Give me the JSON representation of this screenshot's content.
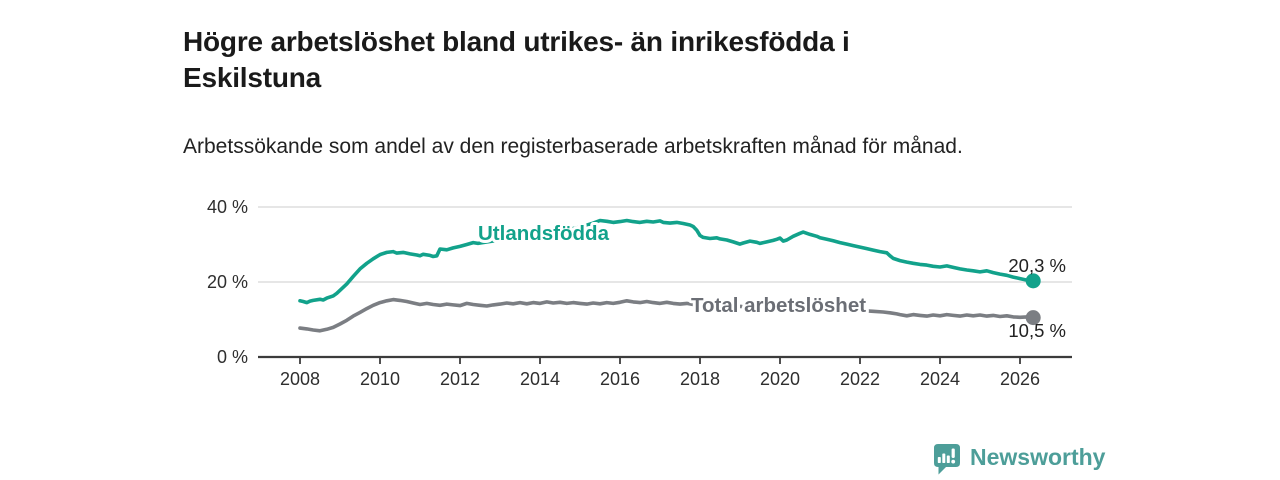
{
  "header": {
    "title": "Högre arbetslöshet bland utrikes- än inrikesfödda i Eskilstuna",
    "subtitle": "Arbetssökande som andel av den registerbaserade arbetskraften månad för månad."
  },
  "footer": {
    "brand": "Newsworthy",
    "logo_icon": "newsworthy-speech-bubble-bar-chart-icon",
    "brand_color": "#4d9e99"
  },
  "colors": {
    "series_foreign_born": "#12a28b",
    "series_total": "#7b7e83",
    "series_total_label": "#6b6e75",
    "gridline": "#d8d8d8",
    "axis": "#3c3c3c",
    "axis_text": "#2e2e2e",
    "value_label": "#222222"
  },
  "chart_data": {
    "type": "line",
    "title": "Högre arbetslöshet bland utrikes- än inrikesfödda i Eskilstuna",
    "subtitle": "Arbetssökande som andel av den registerbaserade arbetskraften månad för månad.",
    "xlabel": "",
    "ylabel": "",
    "y_unit": "%",
    "x_range": [
      2007.0,
      2027.2
    ],
    "ylim": [
      0,
      42
    ],
    "grid": "horizontal",
    "legend_position": "inline-labels",
    "x_ticks": [
      2008,
      2010,
      2012,
      2014,
      2016,
      2018,
      2020,
      2022,
      2024,
      2026
    ],
    "x_tick_labels": [
      "2008",
      "2010",
      "2012",
      "2014",
      "2016",
      "2018",
      "2020",
      "2022",
      "2024",
      "2026"
    ],
    "y_ticks": [
      0,
      20,
      40
    ],
    "y_tick_labels": [
      "0 %",
      "20 %",
      "40 %"
    ],
    "series": [
      {
        "name": "Utlandsfödda",
        "color": "#12a28b",
        "end_value": 20.3,
        "end_label": "20,3 %",
        "points": [
          [
            2008.0,
            15.0
          ],
          [
            2008.08,
            14.8
          ],
          [
            2008.17,
            14.5
          ],
          [
            2008.25,
            14.9
          ],
          [
            2008.33,
            15.1
          ],
          [
            2008.5,
            15.4
          ],
          [
            2008.58,
            15.2
          ],
          [
            2008.67,
            15.7
          ],
          [
            2008.83,
            16.3
          ],
          [
            2008.92,
            17.0
          ],
          [
            2009.0,
            17.8
          ],
          [
            2009.17,
            19.5
          ],
          [
            2009.33,
            21.5
          ],
          [
            2009.5,
            23.5
          ],
          [
            2009.67,
            25.0
          ],
          [
            2009.83,
            26.2
          ],
          [
            2010.0,
            27.3
          ],
          [
            2010.17,
            27.9
          ],
          [
            2010.33,
            28.1
          ],
          [
            2010.42,
            27.7
          ],
          [
            2010.58,
            27.9
          ],
          [
            2010.75,
            27.5
          ],
          [
            2010.92,
            27.2
          ],
          [
            2011.0,
            27.0
          ],
          [
            2011.08,
            27.4
          ],
          [
            2011.25,
            27.1
          ],
          [
            2011.33,
            26.8
          ],
          [
            2011.42,
            27.0
          ],
          [
            2011.5,
            28.8
          ],
          [
            2011.67,
            28.6
          ],
          [
            2011.83,
            29.1
          ],
          [
            2012.0,
            29.5
          ],
          [
            2012.17,
            30.0
          ],
          [
            2012.33,
            30.5
          ],
          [
            2012.45,
            30.3
          ],
          [
            2012.75,
            30.8
          ],
          [
            2013.0,
            31.2
          ],
          [
            2013.5,
            32.0
          ],
          [
            2014.0,
            32.8
          ],
          [
            2014.5,
            33.6
          ],
          [
            2015.0,
            34.6
          ],
          [
            2015.3,
            35.6
          ],
          [
            2015.5,
            36.4
          ],
          [
            2015.67,
            36.2
          ],
          [
            2015.83,
            35.9
          ],
          [
            2016.0,
            36.1
          ],
          [
            2016.17,
            36.4
          ],
          [
            2016.33,
            36.1
          ],
          [
            2016.5,
            35.9
          ],
          [
            2016.67,
            36.2
          ],
          [
            2016.83,
            36.0
          ],
          [
            2017.0,
            36.3
          ],
          [
            2017.08,
            35.9
          ],
          [
            2017.25,
            35.7
          ],
          [
            2017.42,
            35.9
          ],
          [
            2017.58,
            35.6
          ],
          [
            2017.75,
            35.2
          ],
          [
            2017.83,
            34.8
          ],
          [
            2017.92,
            33.8
          ],
          [
            2018.0,
            32.4
          ],
          [
            2018.08,
            31.9
          ],
          [
            2018.25,
            31.6
          ],
          [
            2018.42,
            31.8
          ],
          [
            2018.5,
            31.5
          ],
          [
            2018.67,
            31.2
          ],
          [
            2018.83,
            30.7
          ],
          [
            2019.0,
            30.1
          ],
          [
            2019.08,
            30.4
          ],
          [
            2019.25,
            30.9
          ],
          [
            2019.42,
            30.6
          ],
          [
            2019.5,
            30.3
          ],
          [
            2019.67,
            30.7
          ],
          [
            2019.83,
            31.1
          ],
          [
            2019.92,
            31.4
          ],
          [
            2020.0,
            31.7
          ],
          [
            2020.08,
            30.9
          ],
          [
            2020.17,
            31.2
          ],
          [
            2020.33,
            32.2
          ],
          [
            2020.5,
            33.0
          ],
          [
            2020.58,
            33.3
          ],
          [
            2020.75,
            32.7
          ],
          [
            2020.92,
            32.2
          ],
          [
            2021.0,
            31.8
          ],
          [
            2021.17,
            31.4
          ],
          [
            2021.33,
            31.0
          ],
          [
            2021.5,
            30.5
          ],
          [
            2021.67,
            30.1
          ],
          [
            2021.83,
            29.7
          ],
          [
            2022.0,
            29.3
          ],
          [
            2022.17,
            28.9
          ],
          [
            2022.33,
            28.5
          ],
          [
            2022.5,
            28.1
          ],
          [
            2022.67,
            27.8
          ],
          [
            2022.75,
            27.0
          ],
          [
            2022.83,
            26.3
          ],
          [
            2023.0,
            25.7
          ],
          [
            2023.17,
            25.3
          ],
          [
            2023.33,
            25.0
          ],
          [
            2023.5,
            24.7
          ],
          [
            2023.67,
            24.5
          ],
          [
            2023.83,
            24.2
          ],
          [
            2024.0,
            24.0
          ],
          [
            2024.17,
            24.3
          ],
          [
            2024.33,
            23.9
          ],
          [
            2024.5,
            23.5
          ],
          [
            2024.67,
            23.2
          ],
          [
            2024.83,
            23.0
          ],
          [
            2025.0,
            22.7
          ],
          [
            2025.17,
            23.0
          ],
          [
            2025.33,
            22.5
          ],
          [
            2025.5,
            22.1
          ],
          [
            2025.67,
            21.8
          ],
          [
            2025.83,
            21.3
          ],
          [
            2026.0,
            20.9
          ],
          [
            2026.17,
            20.5
          ],
          [
            2026.33,
            20.3
          ]
        ]
      },
      {
        "name": "Total arbetslöshet",
        "color": "#7b7e83",
        "end_value": 10.5,
        "end_label": "10,5 %",
        "points": [
          [
            2008.0,
            7.7
          ],
          [
            2008.17,
            7.5
          ],
          [
            2008.33,
            7.2
          ],
          [
            2008.5,
            7.0
          ],
          [
            2008.67,
            7.4
          ],
          [
            2008.83,
            7.9
          ],
          [
            2009.0,
            8.8
          ],
          [
            2009.17,
            9.8
          ],
          [
            2009.33,
            10.9
          ],
          [
            2009.5,
            11.9
          ],
          [
            2009.67,
            12.9
          ],
          [
            2009.83,
            13.8
          ],
          [
            2010.0,
            14.5
          ],
          [
            2010.17,
            15.0
          ],
          [
            2010.33,
            15.3
          ],
          [
            2010.5,
            15.1
          ],
          [
            2010.67,
            14.8
          ],
          [
            2010.83,
            14.4
          ],
          [
            2011.0,
            14.0
          ],
          [
            2011.17,
            14.3
          ],
          [
            2011.33,
            14.0
          ],
          [
            2011.5,
            13.8
          ],
          [
            2011.67,
            14.1
          ],
          [
            2011.83,
            13.9
          ],
          [
            2012.0,
            13.7
          ],
          [
            2012.17,
            14.3
          ],
          [
            2012.33,
            14.0
          ],
          [
            2012.5,
            13.8
          ],
          [
            2012.67,
            13.6
          ],
          [
            2012.83,
            13.9
          ],
          [
            2013.0,
            14.1
          ],
          [
            2013.17,
            14.4
          ],
          [
            2013.33,
            14.2
          ],
          [
            2013.5,
            14.5
          ],
          [
            2013.67,
            14.2
          ],
          [
            2013.83,
            14.5
          ],
          [
            2014.0,
            14.3
          ],
          [
            2014.17,
            14.7
          ],
          [
            2014.33,
            14.4
          ],
          [
            2014.5,
            14.6
          ],
          [
            2014.67,
            14.3
          ],
          [
            2014.83,
            14.5
          ],
          [
            2015.0,
            14.3
          ],
          [
            2015.17,
            14.1
          ],
          [
            2015.33,
            14.4
          ],
          [
            2015.5,
            14.2
          ],
          [
            2015.67,
            14.5
          ],
          [
            2015.83,
            14.3
          ],
          [
            2016.0,
            14.6
          ],
          [
            2016.17,
            15.0
          ],
          [
            2016.33,
            14.7
          ],
          [
            2016.5,
            14.5
          ],
          [
            2016.67,
            14.8
          ],
          [
            2016.83,
            14.5
          ],
          [
            2017.0,
            14.3
          ],
          [
            2017.17,
            14.6
          ],
          [
            2017.33,
            14.3
          ],
          [
            2017.5,
            14.1
          ],
          [
            2017.67,
            14.3
          ],
          [
            2017.83,
            14.0
          ],
          [
            2018.0,
            13.9
          ],
          [
            2018.25,
            13.8
          ],
          [
            2018.5,
            13.7
          ],
          [
            2019.0,
            13.5
          ],
          [
            2019.5,
            13.3
          ],
          [
            2020.0,
            13.2
          ],
          [
            2020.5,
            13.0
          ],
          [
            2021.0,
            12.8
          ],
          [
            2021.5,
            12.6
          ],
          [
            2022.0,
            12.4
          ],
          [
            2022.33,
            12.2
          ],
          [
            2022.58,
            12.0
          ],
          [
            2022.75,
            11.8
          ],
          [
            2022.92,
            11.5
          ],
          [
            2023.0,
            11.3
          ],
          [
            2023.17,
            11.0
          ],
          [
            2023.33,
            11.3
          ],
          [
            2023.5,
            11.1
          ],
          [
            2023.67,
            10.9
          ],
          [
            2023.83,
            11.2
          ],
          [
            2024.0,
            11.0
          ],
          [
            2024.17,
            11.3
          ],
          [
            2024.33,
            11.1
          ],
          [
            2024.5,
            10.9
          ],
          [
            2024.67,
            11.2
          ],
          [
            2024.83,
            11.0
          ],
          [
            2025.0,
            11.2
          ],
          [
            2025.17,
            10.9
          ],
          [
            2025.33,
            11.1
          ],
          [
            2025.5,
            10.8
          ],
          [
            2025.67,
            11.0
          ],
          [
            2025.83,
            10.7
          ],
          [
            2026.0,
            10.6
          ],
          [
            2026.17,
            10.7
          ],
          [
            2026.33,
            10.5
          ]
        ]
      }
    ]
  }
}
